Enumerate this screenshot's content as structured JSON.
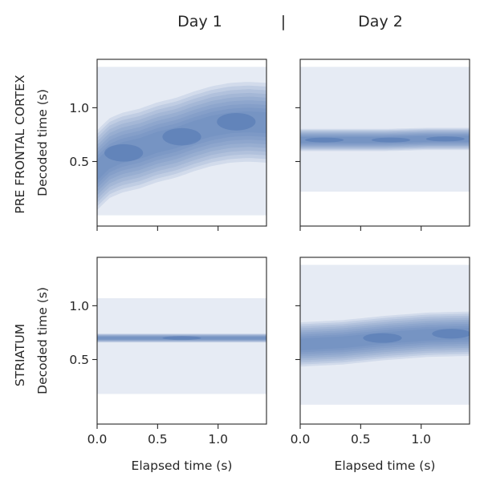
{
  "figure": {
    "column_headers": [
      "Day 1",
      "Day 2"
    ],
    "column_separator": "|",
    "row_labels": [
      "PRE FRONTAL CORTEX",
      "STRIATUM"
    ]
  },
  "chart_data": [
    {
      "type": "heatmap",
      "kind": "kde-density-contour",
      "row": "PRE FRONTAL CORTEX",
      "column": "Day 1",
      "xlabel": "",
      "ylabel": "Decoded time (s)",
      "xlim": [
        0,
        1.4
      ],
      "ylim": [
        -0.1,
        1.45
      ],
      "xticks": [
        0.0,
        0.5,
        1.0
      ],
      "xtick_labels": [],
      "yticks": [
        0.5,
        1.0
      ],
      "ytick_labels": [
        "0.5",
        "1.0"
      ],
      "density_extent": {
        "x": [
          0,
          1.4
        ],
        "y": [
          0.0,
          1.38
        ]
      },
      "ridge": [
        [
          0.0,
          0.42
        ],
        [
          0.1,
          0.53
        ],
        [
          0.2,
          0.58
        ],
        [
          0.35,
          0.62
        ],
        [
          0.5,
          0.68
        ],
        [
          0.65,
          0.72
        ],
        [
          0.8,
          0.78
        ],
        [
          0.95,
          0.83
        ],
        [
          1.1,
          0.86
        ],
        [
          1.25,
          0.87
        ],
        [
          1.4,
          0.86
        ]
      ],
      "peaks": [
        [
          0.22,
          0.58
        ],
        [
          0.7,
          0.73
        ],
        [
          1.15,
          0.87
        ]
      ],
      "spread_y": 0.18,
      "color": "#4c72b0",
      "grid": false
    },
    {
      "type": "heatmap",
      "kind": "kde-density-contour",
      "row": "PRE FRONTAL CORTEX",
      "column": "Day 2",
      "xlabel": "",
      "ylabel": "",
      "xlim": [
        0,
        1.4
      ],
      "ylim": [
        -0.1,
        1.45
      ],
      "xticks": [
        0.0,
        0.5,
        1.0
      ],
      "xtick_labels": [],
      "yticks": [
        0.5,
        1.0
      ],
      "ytick_labels": [],
      "density_extent": {
        "x": [
          0,
          1.4
        ],
        "y": [
          0.22,
          1.38
        ]
      },
      "ridge": [
        [
          0.0,
          0.7
        ],
        [
          0.35,
          0.7
        ],
        [
          0.7,
          0.7
        ],
        [
          1.05,
          0.71
        ],
        [
          1.4,
          0.71
        ]
      ],
      "peaks": [
        [
          0.2,
          0.7
        ],
        [
          0.75,
          0.7
        ],
        [
          1.2,
          0.71
        ]
      ],
      "spread_y": 0.05,
      "color": "#4c72b0",
      "grid": false
    },
    {
      "type": "heatmap",
      "kind": "kde-density-contour",
      "row": "STRIATUM",
      "column": "Day 1",
      "xlabel": "Elapsed time (s)",
      "ylabel": "Decoded time (s)",
      "xlim": [
        0,
        1.4
      ],
      "ylim": [
        -0.1,
        1.45
      ],
      "xticks": [
        0.0,
        0.5,
        1.0
      ],
      "xtick_labels": [
        "0.0",
        "0.5",
        "1.0"
      ],
      "yticks": [
        0.5,
        1.0
      ],
      "ytick_labels": [
        "0.5",
        "1.0"
      ],
      "density_extent": {
        "x": [
          0,
          1.4
        ],
        "y": [
          0.18,
          1.07
        ]
      },
      "ridge": [
        [
          0.0,
          0.7
        ],
        [
          0.35,
          0.7
        ],
        [
          0.7,
          0.7
        ],
        [
          1.05,
          0.7
        ],
        [
          1.4,
          0.7
        ]
      ],
      "peaks": [
        [
          0.7,
          0.7
        ]
      ],
      "spread_y": 0.02,
      "color": "#4c72b0",
      "grid": false
    },
    {
      "type": "heatmap",
      "kind": "kde-density-contour",
      "row": "STRIATUM",
      "column": "Day 2",
      "xlabel": "Elapsed time (s)",
      "ylabel": "",
      "xlim": [
        0,
        1.4
      ],
      "ylim": [
        -0.1,
        1.45
      ],
      "xticks": [
        0.0,
        0.5,
        1.0
      ],
      "xtick_labels": [
        "0.0",
        "0.5",
        "1.0"
      ],
      "yticks": [
        0.5,
        1.0
      ],
      "ytick_labels": [],
      "density_extent": {
        "x": [
          0,
          1.4
        ],
        "y": [
          0.08,
          1.38
        ]
      },
      "ridge": [
        [
          0.0,
          0.64
        ],
        [
          0.35,
          0.66
        ],
        [
          0.7,
          0.7
        ],
        [
          1.05,
          0.73
        ],
        [
          1.4,
          0.74
        ]
      ],
      "peaks": [
        [
          0.68,
          0.7
        ],
        [
          1.25,
          0.74
        ]
      ],
      "spread_y": 0.1,
      "color": "#4c72b0",
      "grid": false
    }
  ]
}
